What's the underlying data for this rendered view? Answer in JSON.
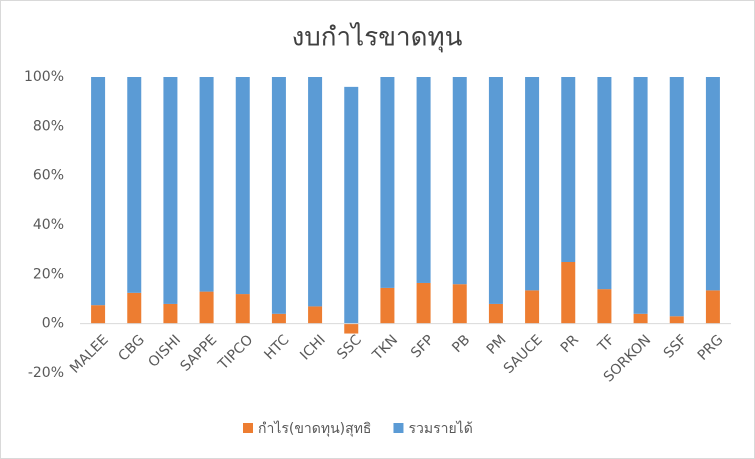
{
  "chart_data": {
    "type": "stacked_bar",
    "title": "งบกำไรขาดทุน",
    "categories": [
      "MALEE",
      "CBG",
      "OISHI",
      "SAPPE",
      "TIPCO",
      "HTC",
      "ICHI",
      "SSC",
      "TKN",
      "SFP",
      "PB",
      "PM",
      "SAUCE",
      "PR",
      "TF",
      "SORKON",
      "SSF",
      "PRG"
    ],
    "series": [
      {
        "name": "กำไร(ขาดทุน)สุทธิ",
        "color": "#ed7d31",
        "values": [
          7.5,
          12.5,
          8,
          13,
          12,
          4,
          7,
          -4,
          14.5,
          16.5,
          16,
          8,
          13.5,
          25,
          14,
          4,
          3,
          13.5
        ]
      },
      {
        "name": "รวมรายได้",
        "color": "#5b9bd5",
        "values": [
          92.5,
          87.5,
          92,
          87,
          88,
          96,
          93,
          96,
          85.5,
          83.5,
          84,
          92,
          86.5,
          75,
          86,
          96,
          97,
          86.5
        ]
      }
    ],
    "ylim": [
      -20,
      100
    ],
    "yticks": [
      {
        "value": -20,
        "label": "-20%"
      },
      {
        "value": 0,
        "label": "0%"
      },
      {
        "value": 20,
        "label": "20%"
      },
      {
        "value": 40,
        "label": "40%"
      },
      {
        "value": 60,
        "label": "60%"
      },
      {
        "value": 80,
        "label": "80%"
      },
      {
        "value": 100,
        "label": "100%"
      }
    ],
    "grid": false,
    "legend": "bottom"
  }
}
